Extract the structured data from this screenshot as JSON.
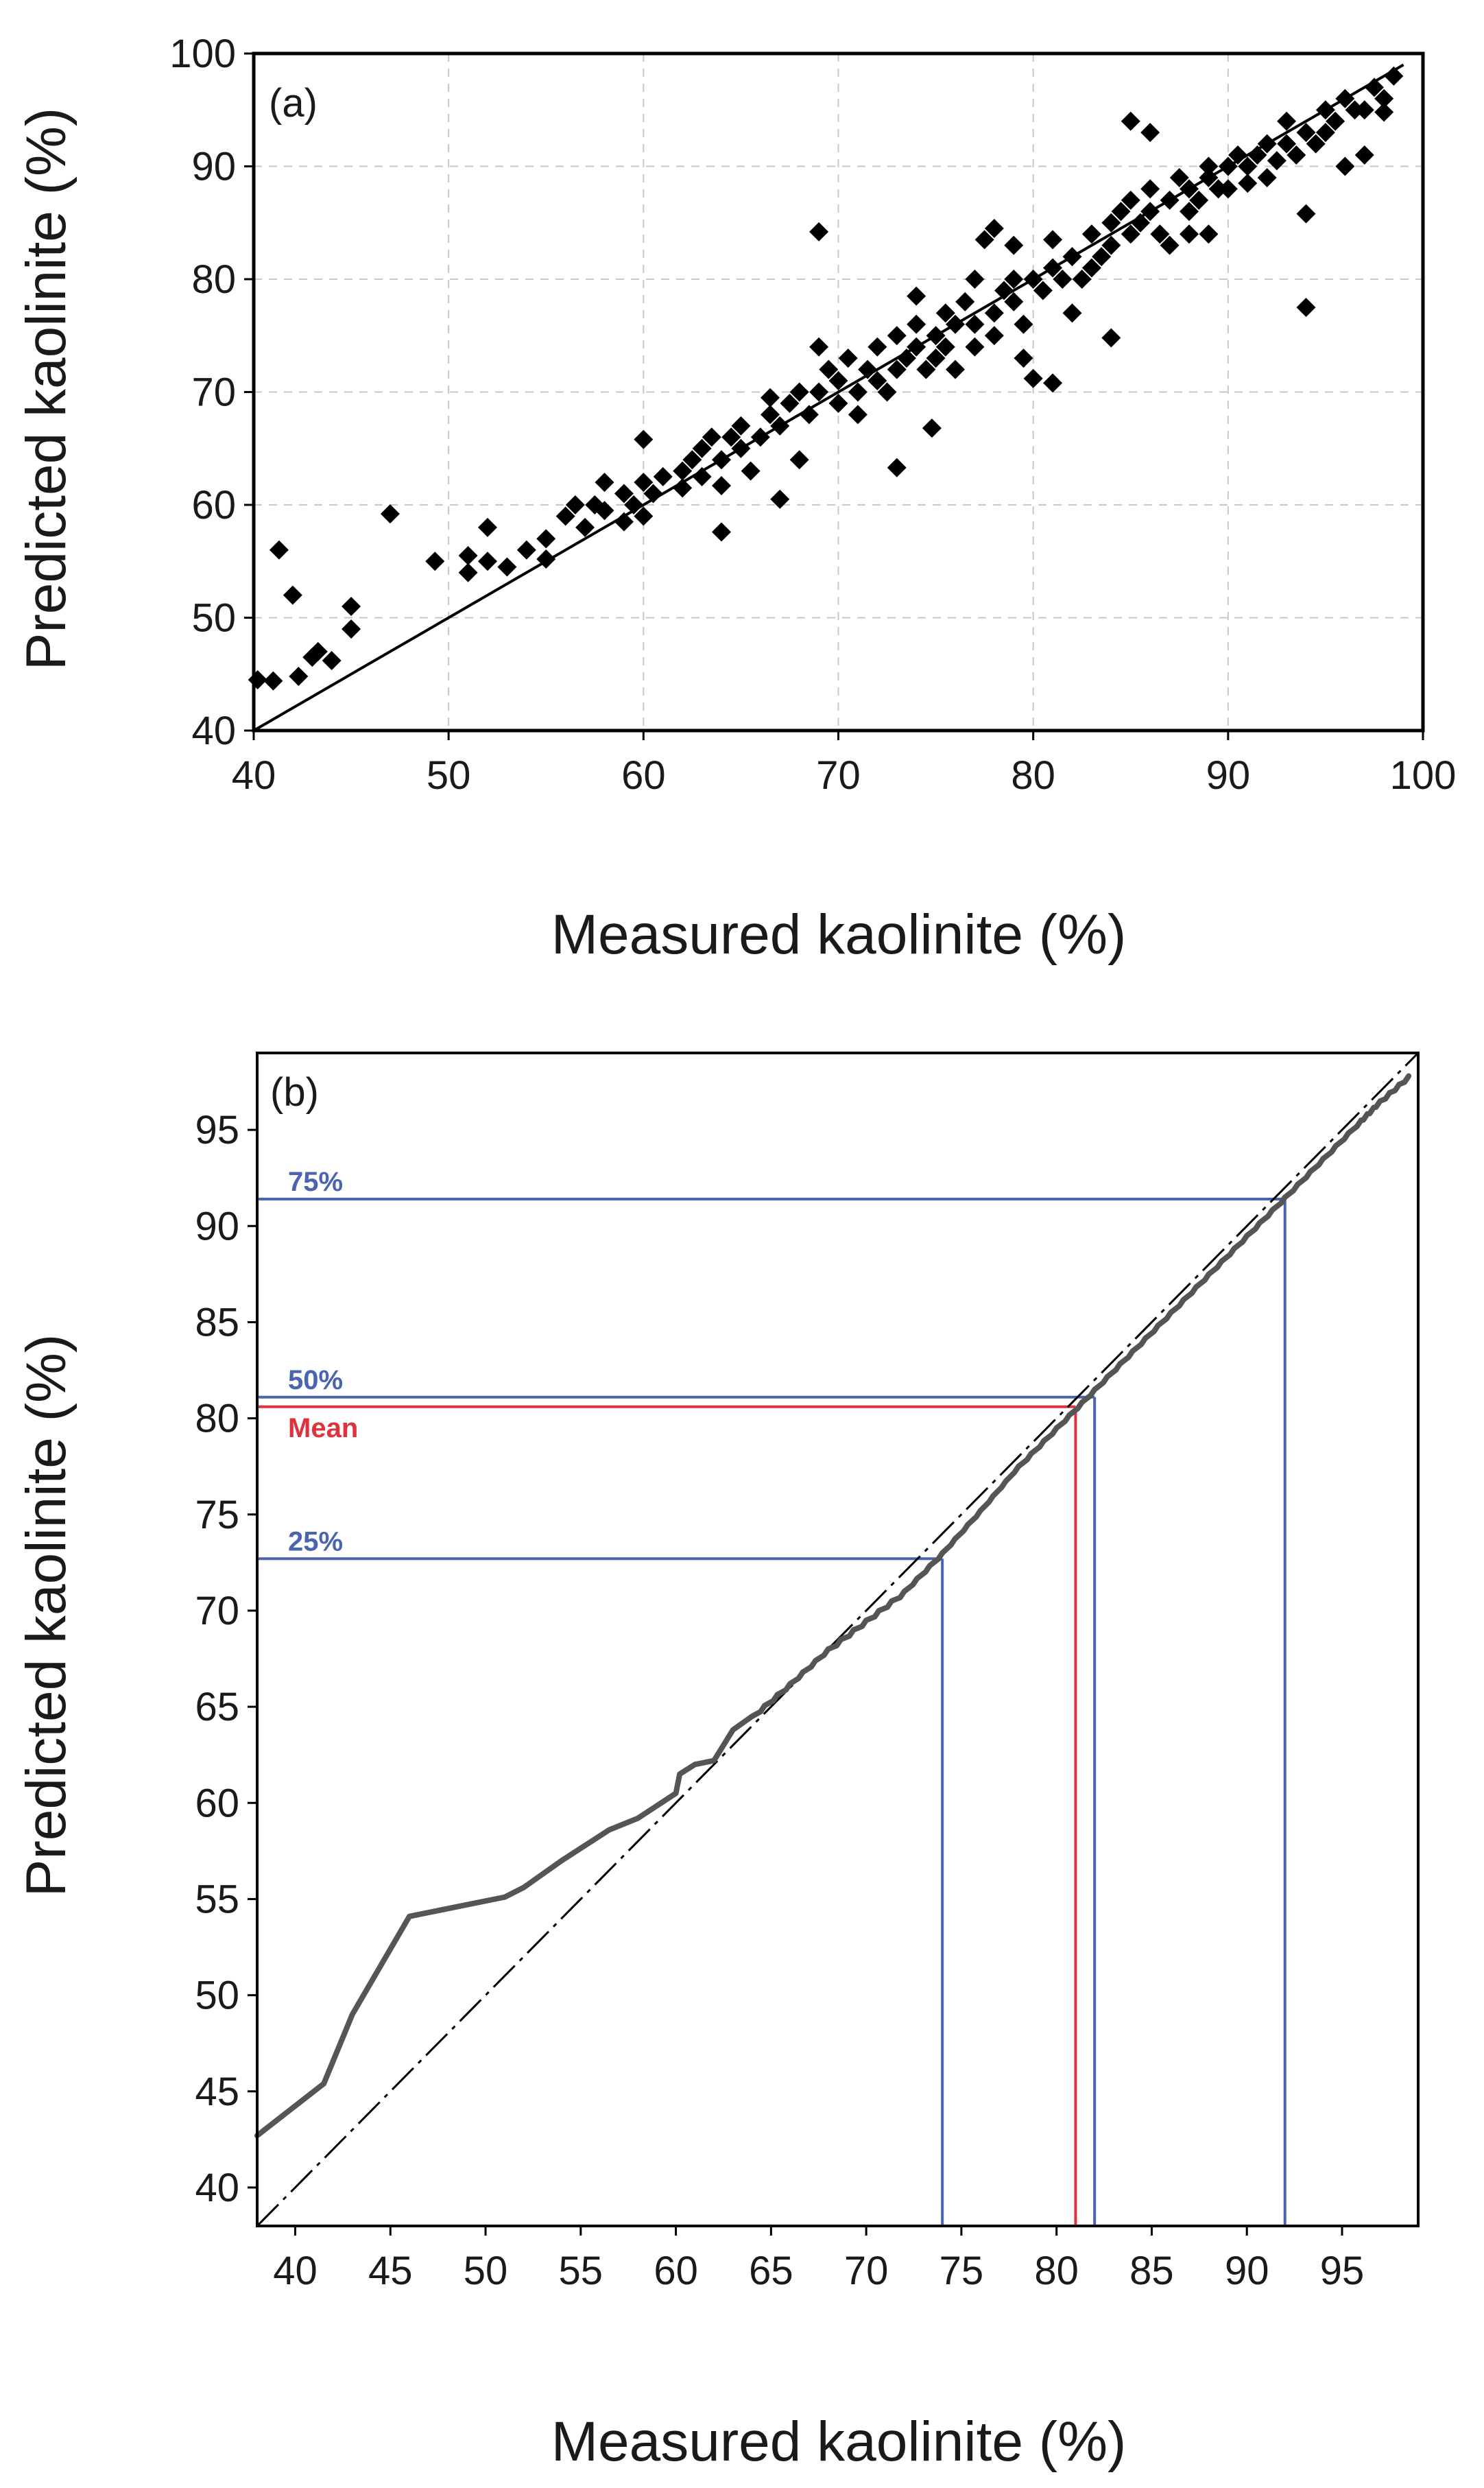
{
  "colors": {
    "points": "#000000",
    "cdf_line": "#555555",
    "quantile": "#4a64b0",
    "mean": "#e0323c",
    "grid": "#c8c8c8"
  },
  "chart_data": [
    {
      "type": "scatter",
      "panel_label": "(a)",
      "xlabel": "Measured kaolinite (%)",
      "ylabel": "Predicted kaolinite (%)",
      "xlim": [
        40,
        100
      ],
      "ylim": [
        40,
        100
      ],
      "xticks": [
        "40",
        "50",
        "60",
        "70",
        "80",
        "90",
        "100"
      ],
      "yticks": [
        "40",
        "50",
        "60",
        "70",
        "80",
        "90",
        "100"
      ],
      "grid": true,
      "reference_line": {
        "name": "1:1 line",
        "x": [
          40,
          99
        ],
        "y": [
          40,
          99
        ]
      },
      "marker": "diamond",
      "points": [
        [
          40.2,
          44.5
        ],
        [
          41,
          44.4
        ],
        [
          41.3,
          56
        ],
        [
          42,
          52
        ],
        [
          42.3,
          44.8
        ],
        [
          43,
          46.5
        ],
        [
          43.3,
          47
        ],
        [
          44,
          46.2
        ],
        [
          45,
          49
        ],
        [
          45,
          51
        ],
        [
          47,
          59.2
        ],
        [
          49.3,
          55
        ],
        [
          51,
          54
        ],
        [
          51,
          55.5
        ],
        [
          52,
          58
        ],
        [
          52,
          55
        ],
        [
          53,
          54.5
        ],
        [
          54,
          56
        ],
        [
          55,
          55.2
        ],
        [
          55,
          57
        ],
        [
          56,
          59
        ],
        [
          56.5,
          60
        ],
        [
          57,
          58
        ],
        [
          57.5,
          60
        ],
        [
          58,
          62
        ],
        [
          58,
          59.5
        ],
        [
          59,
          58.5
        ],
        [
          59,
          61
        ],
        [
          59.5,
          60
        ],
        [
          60,
          59
        ],
        [
          60,
          62
        ],
        [
          60,
          65.8
        ],
        [
          60.5,
          61
        ],
        [
          61,
          62.5
        ],
        [
          62,
          63
        ],
        [
          62,
          61.5
        ],
        [
          62.5,
          64
        ],
        [
          63,
          62.5
        ],
        [
          63,
          65
        ],
        [
          63.5,
          66
        ],
        [
          64,
          57.6
        ],
        [
          64,
          64
        ],
        [
          64.5,
          66
        ],
        [
          64,
          61.7
        ],
        [
          65,
          65
        ],
        [
          65,
          67
        ],
        [
          65.5,
          63
        ],
        [
          66,
          66
        ],
        [
          66.5,
          68
        ],
        [
          66.5,
          69.5
        ],
        [
          67,
          67
        ],
        [
          67,
          60.5
        ],
        [
          67.5,
          69
        ],
        [
          68,
          70
        ],
        [
          68,
          64
        ],
        [
          68.5,
          68
        ],
        [
          69,
          70
        ],
        [
          69,
          74
        ],
        [
          69,
          84.2
        ],
        [
          69.5,
          72
        ],
        [
          70,
          69
        ],
        [
          70,
          71
        ],
        [
          70.5,
          73
        ],
        [
          71,
          70
        ],
        [
          71,
          68
        ],
        [
          71.5,
          72
        ],
        [
          72,
          71
        ],
        [
          72,
          74
        ],
        [
          72.5,
          70
        ],
        [
          73,
          63.3
        ],
        [
          73,
          72
        ],
        [
          73,
          75
        ],
        [
          73.5,
          73
        ],
        [
          74,
          74
        ],
        [
          74,
          76
        ],
        [
          74,
          78.5
        ],
        [
          74.5,
          72
        ],
        [
          74.8,
          66.8
        ],
        [
          75,
          75
        ],
        [
          75,
          73
        ],
        [
          75.5,
          77
        ],
        [
          75.5,
          74
        ],
        [
          76,
          76
        ],
        [
          76,
          72
        ],
        [
          76.5,
          78
        ],
        [
          77,
          76
        ],
        [
          77,
          80
        ],
        [
          77,
          74
        ],
        [
          77.5,
          83.5
        ],
        [
          78,
          77
        ],
        [
          78,
          84.5
        ],
        [
          78,
          75
        ],
        [
          78.5,
          79
        ],
        [
          79,
          78
        ],
        [
          79,
          80
        ],
        [
          79,
          83
        ],
        [
          79.5,
          76
        ],
        [
          79.5,
          73
        ],
        [
          80,
          80
        ],
        [
          80,
          71.2
        ],
        [
          80.5,
          79
        ],
        [
          81,
          81
        ],
        [
          81,
          70.8
        ],
        [
          81,
          83.5
        ],
        [
          81.5,
          80
        ],
        [
          82,
          82
        ],
        [
          82,
          77
        ],
        [
          82.5,
          80
        ],
        [
          83,
          81
        ],
        [
          83,
          84
        ],
        [
          83.5,
          82
        ],
        [
          84,
          74.8
        ],
        [
          84,
          85
        ],
        [
          84,
          83
        ],
        [
          84.5,
          86
        ],
        [
          85,
          84
        ],
        [
          85,
          94
        ],
        [
          85,
          87
        ],
        [
          85.5,
          85
        ],
        [
          86,
          86
        ],
        [
          86,
          93
        ],
        [
          86,
          88
        ],
        [
          86.5,
          84
        ],
        [
          87,
          83
        ],
        [
          87,
          87
        ],
        [
          87.5,
          89
        ],
        [
          88,
          86
        ],
        [
          88,
          88
        ],
        [
          88,
          84
        ],
        [
          88.5,
          87
        ],
        [
          89,
          89
        ],
        [
          89,
          90
        ],
        [
          89,
          84
        ],
        [
          89.5,
          88
        ],
        [
          90,
          90
        ],
        [
          90,
          88
        ],
        [
          90.5,
          91
        ],
        [
          91,
          90
        ],
        [
          91,
          88.5
        ],
        [
          91.5,
          91
        ],
        [
          92,
          92
        ],
        [
          92,
          89
        ],
        [
          92.5,
          90.5
        ],
        [
          93,
          92
        ],
        [
          93,
          94
        ],
        [
          93.5,
          91
        ],
        [
          94,
          93
        ],
        [
          94,
          85.8
        ],
        [
          94,
          77.5
        ],
        [
          94.5,
          92
        ],
        [
          95,
          95
        ],
        [
          95,
          93
        ],
        [
          95.5,
          94
        ],
        [
          96,
          96
        ],
        [
          96,
          90
        ],
        [
          96.5,
          95
        ],
        [
          97,
          95
        ],
        [
          97,
          91
        ],
        [
          97.5,
          97
        ],
        [
          98,
          96
        ],
        [
          98,
          94.8
        ],
        [
          98.5,
          98
        ]
      ]
    },
    {
      "type": "line",
      "panel_label": "(b)",
      "xlabel": "Measured kaolinite (%)",
      "ylabel": "Predicted kaolinite (%)",
      "xlim": [
        38,
        99
      ],
      "ylim": [
        38,
        99
      ],
      "xticks": [
        "40",
        "45",
        "50",
        "55",
        "60",
        "65",
        "70",
        "75",
        "80",
        "85",
        "90",
        "95"
      ],
      "yticks": [
        "40",
        "45",
        "50",
        "55",
        "60",
        "65",
        "70",
        "75",
        "80",
        "85",
        "90",
        "95"
      ],
      "grid": false,
      "reference_line": {
        "name": "1:1 line",
        "x": [
          38,
          99
        ],
        "y": [
          38,
          99
        ]
      },
      "series": [
        {
          "name": "cumulative curve",
          "x": [
            38,
            41.5,
            43,
            46,
            51,
            52,
            54,
            56.5,
            58,
            60,
            60.2,
            61,
            62,
            63,
            64,
            66,
            68,
            70,
            72,
            74,
            76,
            78,
            80,
            82,
            84,
            86,
            88,
            90,
            92,
            94,
            96,
            97,
            98.5
          ],
          "y": [
            42.7,
            45.4,
            49,
            54.1,
            55.1,
            55.6,
            57,
            58.6,
            59.2,
            60.5,
            61.5,
            62,
            62.2,
            63.8,
            64.5,
            66.2,
            68,
            69.5,
            71,
            73,
            75.2,
            77.5,
            79.5,
            81.5,
            83.5,
            85.5,
            87.5,
            89.5,
            91.5,
            93.5,
            95.5,
            96.5,
            97.8
          ]
        }
      ],
      "quantiles": [
        {
          "label": "75%",
          "x": 92,
          "y": 91.4
        },
        {
          "label": "50%",
          "x": 82,
          "y": 81.1
        },
        {
          "label": "Mean",
          "x": 81,
          "y": 80.6
        },
        {
          "label": "25%",
          "x": 74,
          "y": 72.7
        }
      ]
    }
  ]
}
